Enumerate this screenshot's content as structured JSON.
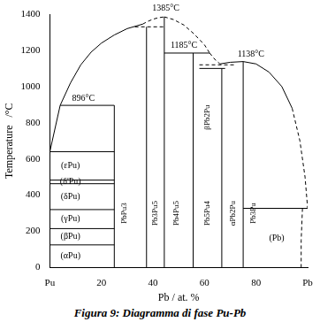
{
  "chart_data": {
    "type": "line",
    "caption": "Figura 9: Diagramma di fase Pu-Pb",
    "x_label": "Pb / at. %",
    "y_label": "Temperature   /°C",
    "xlim": [
      0,
      100
    ],
    "xticks": [
      {
        "value": 0,
        "label": "Pu"
      },
      20,
      40,
      60,
      80,
      {
        "value": 100,
        "label": "Pb"
      }
    ],
    "ylim": [
      0,
      1400
    ],
    "yticks": [
      0,
      200,
      400,
      600,
      800,
      1000,
      1200,
      1400
    ],
    "grid": false,
    "series": [
      {
        "x": [
          4,
          8,
          12,
          16,
          20,
          25,
          30,
          36
        ],
        "values": [
          896,
          1020,
          1120,
          1190,
          1240,
          1285,
          1320,
          1345
        ],
        "color": "#000000",
        "line_style": "solid"
      },
      {
        "x": [
          36,
          38,
          40,
          42,
          44.4
        ],
        "values": [
          1345,
          1360,
          1372,
          1380,
          1385
        ],
        "color": "#000000",
        "line_style": "dashed"
      },
      {
        "x": [
          44.4,
          48,
          52,
          56,
          60,
          62
        ],
        "values": [
          1385,
          1370,
          1340,
          1290,
          1230,
          1185
        ],
        "color": "#000000",
        "line_style": "dashed"
      },
      {
        "x": [
          33,
          44.4
        ],
        "values": [
          1330,
          1330
        ],
        "color": "#000000",
        "line_style": "dashed"
      },
      {
        "x": [
          44.4,
          62
        ],
        "values": [
          1185,
          1185
        ],
        "color": "#000000",
        "line_style": "solid"
      },
      {
        "x": [
          62,
          64,
          66
        ],
        "values": [
          1185,
          1150,
          1125
        ],
        "color": "#000000",
        "line_style": "dashed"
      },
      {
        "x": [
          58,
          72
        ],
        "values": [
          1120,
          1120
        ],
        "color": "#000000",
        "line_style": "dashed"
      },
      {
        "x": [
          58,
          68
        ],
        "values": [
          1100,
          1100
        ],
        "color": "#000000",
        "line_style": "solid"
      },
      {
        "x": [
          66,
          70,
          75,
          80,
          85,
          90,
          94
        ],
        "values": [
          1125,
          1134,
          1138,
          1125,
          1080,
          1000,
          880
        ],
        "color": "#000000",
        "line_style": "solid"
      },
      {
        "x": [
          94,
          97,
          99,
          100
        ],
        "values": [
          880,
          700,
          500,
          327
        ],
        "color": "#000000",
        "line_style": "dashed"
      },
      {
        "x": [
          0,
          4
        ],
        "values": [
          640,
          896
        ],
        "color": "#000000",
        "line_style": "solid"
      },
      {
        "x": [
          4,
          25
        ],
        "values": [
          896,
          896
        ],
        "color": "#000000",
        "line_style": "solid"
      },
      {
        "x": [
          0,
          25
        ],
        "values": [
          640,
          640
        ],
        "color": "#000000",
        "line_style": "solid"
      },
      {
        "x": [
          0,
          25
        ],
        "values": [
          483,
          483
        ],
        "color": "#000000",
        "line_style": "solid"
      },
      {
        "x": [
          0,
          25
        ],
        "values": [
          463,
          463
        ],
        "color": "#000000",
        "line_style": "solid"
      },
      {
        "x": [
          0,
          25
        ],
        "values": [
          320,
          320
        ],
        "color": "#000000",
        "line_style": "solid"
      },
      {
        "x": [
          0,
          25
        ],
        "values": [
          215,
          215
        ],
        "color": "#000000",
        "line_style": "solid"
      },
      {
        "x": [
          0,
          25
        ],
        "values": [
          125,
          125
        ],
        "color": "#000000",
        "line_style": "solid"
      },
      {
        "x": [
          25,
          25
        ],
        "values": [
          0,
          896
        ],
        "color": "#000000",
        "line_style": "solid"
      },
      {
        "x": [
          37.5,
          37.5
        ],
        "values": [
          0,
          1330
        ],
        "color": "#000000",
        "line_style": "solid"
      },
      {
        "x": [
          44.4,
          44.4
        ],
        "values": [
          0,
          1385
        ],
        "color": "#000000",
        "line_style": "solid"
      },
      {
        "x": [
          55.6,
          55.6
        ],
        "values": [
          0,
          1185
        ],
        "color": "#000000",
        "line_style": "solid"
      },
      {
        "x": [
          66.7,
          66.7
        ],
        "values": [
          0,
          1100
        ],
        "color": "#000000",
        "line_style": "solid"
      },
      {
        "x": [
          75,
          75
        ],
        "values": [
          0,
          1138
        ],
        "color": "#000000",
        "line_style": "solid"
      },
      {
        "x": [
          75,
          100
        ],
        "values": [
          327,
          327
        ],
        "color": "#000000",
        "line_style": "solid"
      },
      {
        "x": [
          98,
          97.5,
          97.5
        ],
        "values": [
          327,
          150,
          0
        ],
        "color": "#000000",
        "line_style": "dashed"
      }
    ],
    "annotations": [
      {
        "text": "1385°C",
        "x": 45,
        "y": 1430
      },
      {
        "text": "1185°C",
        "x": 52,
        "y": 1225
      },
      {
        "text": "1138°C",
        "x": 78,
        "y": 1180
      },
      {
        "text": "896°C",
        "x": 13,
        "y": 935
      },
      {
        "text": "(εPu)",
        "x": 8,
        "y": 560
      },
      {
        "text": "(δ'Pu)",
        "x": 8,
        "y": 473
      },
      {
        "text": "(δPu)",
        "x": 8,
        "y": 390
      },
      {
        "text": "(γPu)",
        "x": 8,
        "y": 268
      },
      {
        "text": "(βPu)",
        "x": 8,
        "y": 170
      },
      {
        "text": "(αPu)",
        "x": 8,
        "y": 62
      },
      {
        "text": "(Pb)",
        "x": 88,
        "y": 160
      }
    ],
    "compound_labels": [
      {
        "text": "PbPu3",
        "x": 29,
        "y": 300
      },
      {
        "text": "Pb3Pu5",
        "x": 41,
        "y": 300
      },
      {
        "text": "Pb4Pu5",
        "x": 49,
        "y": 300
      },
      {
        "text": "Pb5Pu4",
        "x": 61,
        "y": 300
      },
      {
        "text": "βPb2Pu",
        "x": 61,
        "y": 830
      },
      {
        "text": "αPb2Pu",
        "x": 71,
        "y": 300
      },
      {
        "text": "Pb3Pu",
        "x": 79,
        "y": 300
      }
    ]
  }
}
